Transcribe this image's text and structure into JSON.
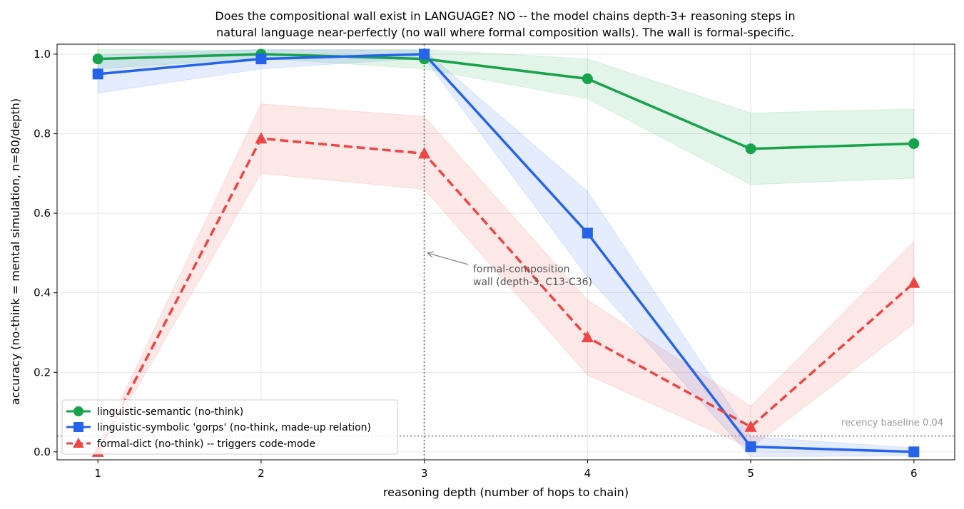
{
  "chart_data": {
    "type": "line",
    "title_lines": [
      "Does the compositional wall exist in LANGUAGE? NO -- the model chains depth-3+ reasoning steps in",
      "natural language near-perfectly (no wall where formal composition walls). The wall is formal-specific."
    ],
    "xlabel": "reasoning depth (number of hops to chain)",
    "ylabel": "accuracy (no-think = mental simulation, n=80/depth)",
    "xlim": [
      0.75,
      6.25
    ],
    "ylim": [
      -0.02,
      1.025
    ],
    "x": [
      1,
      2,
      3,
      4,
      5,
      6
    ],
    "x_ticks": [
      "1",
      "2",
      "3",
      "4",
      "5",
      "6"
    ],
    "y_ticks": [
      "0.0",
      "0.2",
      "0.4",
      "0.6",
      "0.8",
      "1.0"
    ],
    "grid": true,
    "legend_position": "lower-left",
    "series": [
      {
        "name": "linguistic-semantic (no-think)",
        "color": "#16a34a",
        "marker": "circle",
        "dash": "solid",
        "values": [
          0.988,
          1.0,
          0.988,
          0.938,
          0.762,
          0.775
        ],
        "band_low": [
          0.963,
          0.99,
          0.963,
          0.888,
          0.672,
          0.688
        ],
        "band_high": [
          1.012,
          1.01,
          1.012,
          0.988,
          0.852,
          0.862
        ]
      },
      {
        "name": "linguistic-symbolic 'gorps' (no-think, made-up relation)",
        "color": "#2563eb",
        "marker": "square",
        "dash": "solid",
        "values": [
          0.95,
          0.988,
          1.0,
          0.55,
          0.013,
          0.0
        ],
        "band_low": [
          0.902,
          0.963,
          0.99,
          0.44,
          -0.012,
          -0.01
        ],
        "band_high": [
          0.998,
          1.012,
          1.01,
          0.655,
          0.038,
          0.01
        ]
      },
      {
        "name": "formal-dict (no-think) -- triggers code-mode",
        "color": "#ef4444",
        "marker": "triangle",
        "dash": "dashed",
        "values": [
          0.0,
          0.788,
          0.75,
          0.288,
          0.063,
          0.425
        ],
        "band_low": [
          -0.01,
          0.7,
          0.66,
          0.193,
          0.01,
          0.322
        ],
        "band_high": [
          0.01,
          0.875,
          0.843,
          0.382,
          0.115,
          0.528
        ]
      }
    ],
    "baseline": {
      "value": 0.04,
      "label": "recency baseline 0.04"
    },
    "vline": {
      "x": 3
    },
    "annotation": {
      "text_lines": [
        "formal-composition",
        "wall (depth-3, C13-C36)"
      ],
      "arrow_target": [
        3.02,
        0.5
      ]
    }
  }
}
